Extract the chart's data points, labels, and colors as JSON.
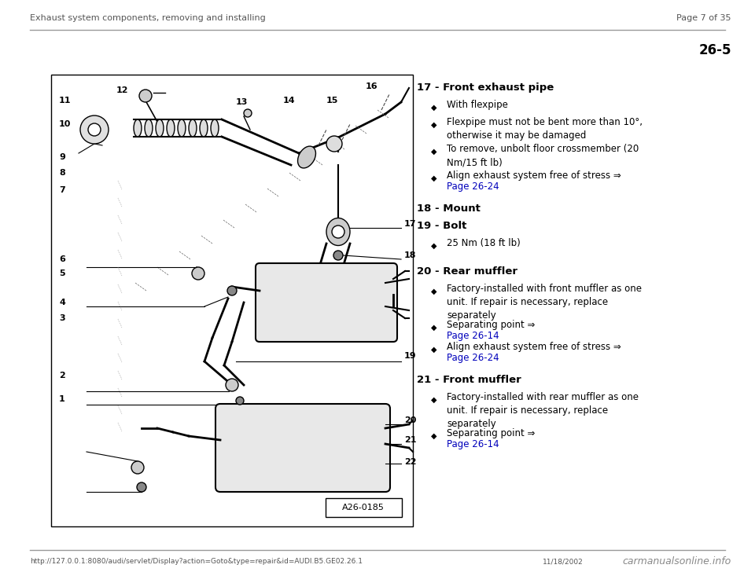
{
  "header_left": "Exhaust system components, removing and installing",
  "header_right": "Page 7 of 35",
  "page_number": "26-5",
  "footer_url": "http://127.0.0.1:8080/audi/servlet/Display?action=Goto&type=repair&id=AUDI.B5.GE02.26.1",
  "footer_date": "11/18/2002",
  "footer_watermark": "carmanualsonline.info",
  "bg_color": "#ffffff",
  "header_color": "#555555",
  "line_color": "#999999",
  "text_color": "#000000",
  "link_color": "#0000bb",
  "diagram_box_color": "#000000",
  "diagram_bg": "#ffffff",
  "figsize": [
    9.6,
    7.42
  ],
  "dpi": 100
}
